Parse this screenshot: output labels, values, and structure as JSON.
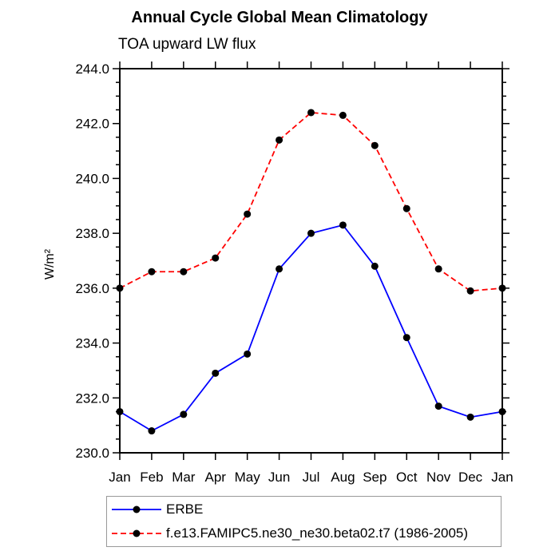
{
  "chart_data": {
    "type": "line",
    "title": "Annual Cycle Global Mean Climatology",
    "subtitle": "TOA upward LW flux",
    "ylabel": "W/m²",
    "xlabel": "",
    "categories": [
      "Jan",
      "Feb",
      "Mar",
      "Apr",
      "May",
      "Jun",
      "Jul",
      "Aug",
      "Sep",
      "Oct",
      "Nov",
      "Dec",
      "Jan"
    ],
    "ylim": [
      230.0,
      244.0
    ],
    "ytick_step": 2.0,
    "ytick_minor_step": 0.5,
    "ytick_labels": [
      "230.0",
      "232.0",
      "234.0",
      "236.0",
      "238.0",
      "240.0",
      "242.0",
      "244.0"
    ],
    "grid": false,
    "legend_position": "bottom",
    "frame_color": "#000000",
    "marker_shape": "circle",
    "series": [
      {
        "name": "ERBE",
        "color": "#0000ff",
        "style": "solid",
        "marker_color": "#000000",
        "values": [
          231.5,
          230.8,
          231.4,
          232.9,
          233.6,
          236.7,
          238.0,
          238.3,
          236.8,
          234.2,
          231.7,
          231.3,
          231.5
        ]
      },
      {
        "name": "f.e13.FAMIPC5.ne30_ne30.beta02.t7 (1986-2005)",
        "color": "#ff0000",
        "style": "dashed",
        "marker_color": "#000000",
        "values": [
          236.0,
          236.6,
          236.6,
          237.1,
          238.7,
          241.4,
          242.4,
          242.3,
          241.2,
          238.9,
          236.7,
          235.9,
          236.0
        ]
      }
    ]
  }
}
